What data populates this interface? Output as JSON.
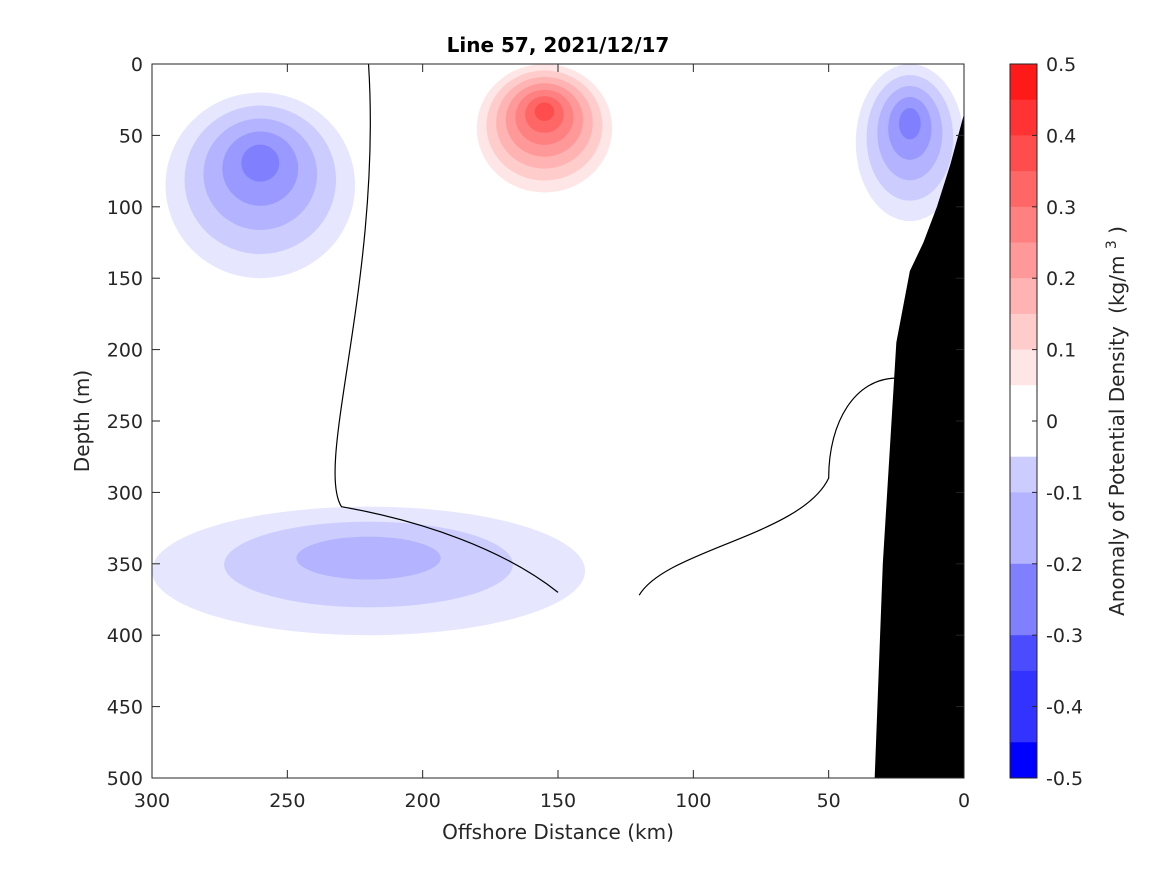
{
  "chart_data": {
    "type": "heatmap",
    "title": "Line 57, 2021/12/17",
    "xlabel": "Offshore Distance (km)",
    "ylabel": "Depth (m)",
    "colorbar_label": "Anomaly of Potential Density",
    "colorbar_unit": "(kg/m",
    "colorbar_unit_exp": "3",
    "colorbar_unit_close": ")",
    "xlim": [
      300,
      0
    ],
    "ylim": [
      0,
      500
    ],
    "xticks": [
      "300",
      "250",
      "200",
      "150",
      "100",
      "50",
      "0"
    ],
    "yticks": [
      "0",
      "50",
      "100",
      "150",
      "200",
      "250",
      "300",
      "350",
      "400",
      "450",
      "500"
    ],
    "colorbar_ticks": [
      "0.5",
      "0.4",
      "0.3",
      "0.2",
      "0.1",
      "0",
      "-0.1",
      "-0.2",
      "-0.3",
      "-0.4",
      "-0.5"
    ],
    "colorbar_range": [
      -0.5,
      0.5
    ],
    "colorbar_levels": 20,
    "colormap": {
      "negative": "#0000ff",
      "zero": "#ffffff",
      "positive": "#ff0000"
    },
    "seafloor_color": "#000000",
    "features": [
      {
        "name": "surface positive core",
        "x_range": [
          180,
          130
        ],
        "depth_range": [
          0,
          90
        ],
        "max_anomaly": 0.33
      },
      {
        "name": "offshore negative lobe",
        "x_range": [
          295,
          225
        ],
        "depth_range": [
          20,
          150
        ],
        "min_anomaly": -0.24
      },
      {
        "name": "nearshore negative lobe",
        "x_range": [
          40,
          0
        ],
        "depth_range": [
          0,
          110
        ],
        "min_anomaly": -0.27
      },
      {
        "name": "deep negative band",
        "x_range": [
          300,
          140
        ],
        "depth_range": [
          310,
          400
        ],
        "min_anomaly": -0.15
      }
    ],
    "seafloor_profile": [
      {
        "x": 0,
        "depth": 35
      },
      {
        "x": 5,
        "depth": 70
      },
      {
        "x": 10,
        "depth": 100
      },
      {
        "x": 15,
        "depth": 125
      },
      {
        "x": 20,
        "depth": 145
      },
      {
        "x": 25,
        "depth": 195
      },
      {
        "x": 30,
        "depth": 350
      },
      {
        "x": 33,
        "depth": 500
      }
    ]
  }
}
